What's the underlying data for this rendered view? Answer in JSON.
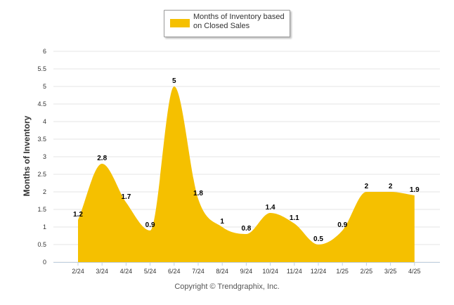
{
  "legend": {
    "label_line1": "Months of Inventory based",
    "label_line2": "on Closed Sales"
  },
  "copyright": "Copyright © Trendgraphix, Inc.",
  "colors": {
    "area": "#F5C000",
    "grid": "#e6e6e6",
    "axis": "#c0d0e0",
    "text": "#333333"
  },
  "chart_data": {
    "type": "area",
    "ylabel": "Months of Inventory",
    "ylim": [
      0,
      6
    ],
    "yticks": [
      "0",
      "0.5",
      "1",
      "1.5",
      "2",
      "2.5",
      "3",
      "3.5",
      "4",
      "4.5",
      "5",
      "5.5",
      "6"
    ],
    "categories": [
      "2/24",
      "3/24",
      "4/24",
      "5/24",
      "6/24",
      "7/24",
      "8/24",
      "9/24",
      "10/24",
      "11/24",
      "12/24",
      "1/25",
      "2/25",
      "3/25",
      "4/25"
    ],
    "series": [
      {
        "name": "Months of Inventory based on Closed Sales",
        "values": [
          1.2,
          2.8,
          1.7,
          0.9,
          5,
          1.8,
          1,
          0.8,
          1.4,
          1.1,
          0.5,
          0.9,
          2,
          2,
          1.9
        ],
        "labels": [
          "1.2",
          "2.8",
          "1.7",
          "0.9",
          "5",
          "1.8",
          "1",
          "0.8",
          "1.4",
          "1.1",
          "0.5",
          "0.9",
          "2",
          "2",
          "1.9"
        ]
      }
    ],
    "grid": true,
    "legend_position": "top-center"
  }
}
